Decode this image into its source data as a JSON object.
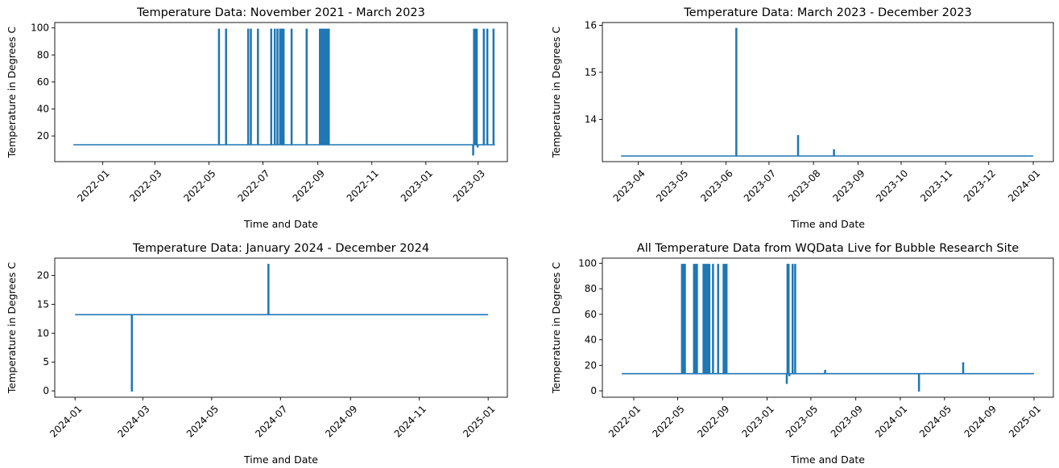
{
  "colors": {
    "series": "#1f77b4",
    "axes": "#000000",
    "background": "#ffffff"
  },
  "chart_data": [
    {
      "type": "line",
      "title": "Temperature Data: November 2021 - March 2023",
      "xlabel": "Time and Date",
      "ylabel": "Temperature in Degrees C",
      "xlim": [
        "2021-11-08",
        "2023-04-03"
      ],
      "ylim": [
        1,
        104
      ],
      "xticks": [
        "2022-01",
        "2022-03",
        "2022-05",
        "2022-07",
        "2022-09",
        "2022-11",
        "2023-01",
        "2023-03"
      ],
      "yticks": [
        20,
        40,
        60,
        80,
        100
      ],
      "grid": false,
      "legend": "none",
      "series": [
        {
          "baseline": 13.5,
          "x_range": [
            "2021-11-29",
            "2023-03-20"
          ],
          "spikes": [
            {
              "x": "2022-05-12",
              "y": 99
            },
            {
              "x": "2022-05-20",
              "y": 99
            },
            {
              "x": "2022-06-14",
              "y": 99
            },
            {
              "x": "2022-06-17",
              "y": 99
            },
            {
              "x": "2022-06-25",
              "y": 99
            },
            {
              "x": "2022-07-10",
              "y": 99
            },
            {
              "x": "2022-07-14",
              "y": 99
            },
            {
              "x": "2022-07-17",
              "y": 99
            },
            {
              "x": "2022-07-20",
              "y": 99
            },
            {
              "x": "2022-07-22",
              "y": 99
            },
            {
              "x": "2022-07-24",
              "y": 99
            },
            {
              "x": "2022-08-02",
              "y": 99
            },
            {
              "x": "2022-08-19",
              "y": 99
            },
            {
              "x": "2022-09-03",
              "y": 99
            },
            {
              "x": "2022-09-04",
              "y": 99
            },
            {
              "x": "2022-09-05",
              "y": 99
            },
            {
              "x": "2022-09-06",
              "y": 99
            },
            {
              "x": "2022-09-07",
              "y": 99
            },
            {
              "x": "2022-09-08",
              "y": 99
            },
            {
              "x": "2022-09-09",
              "y": 99
            },
            {
              "x": "2022-09-10",
              "y": 99
            },
            {
              "x": "2022-09-11",
              "y": 99
            },
            {
              "x": "2022-09-12",
              "y": 99
            },
            {
              "x": "2022-09-13",
              "y": 99
            },
            {
              "x": "2023-02-23",
              "y": 6
            },
            {
              "x": "2023-02-24",
              "y": 99
            },
            {
              "x": "2023-02-25",
              "y": 99
            },
            {
              "x": "2023-02-26",
              "y": 99
            },
            {
              "x": "2023-02-27",
              "y": 99
            },
            {
              "x": "2023-02-28",
              "y": 12
            },
            {
              "x": "2023-03-07",
              "y": 99
            },
            {
              "x": "2023-03-11",
              "y": 99
            },
            {
              "x": "2023-03-18",
              "y": 99
            }
          ]
        }
      ]
    },
    {
      "type": "line",
      "title": "Temperature Data: March 2023 - December 2023",
      "xlabel": "Time and Date",
      "ylabel": "Temperature in Degrees C",
      "xlim": [
        "2023-03-07",
        "2024-01-15"
      ],
      "ylim": [
        13.1,
        16.06
      ],
      "xticks": [
        "2023-04",
        "2023-05",
        "2023-06",
        "2023-07",
        "2023-08",
        "2023-09",
        "2023-10",
        "2023-11",
        "2023-12",
        "2024-01"
      ],
      "yticks": [
        14,
        15,
        16
      ],
      "grid": false,
      "legend": "none",
      "series": [
        {
          "baseline": 13.22,
          "x_range": [
            "2023-03-20",
            "2024-01-01"
          ],
          "spikes": [
            {
              "x": "2023-06-08",
              "y": 15.93
            },
            {
              "x": "2023-07-21",
              "y": 13.65
            },
            {
              "x": "2023-08-15",
              "y": 13.35
            }
          ]
        }
      ]
    },
    {
      "type": "line",
      "title": "Temperature Data: January 2024 - December 2024",
      "xlabel": "Time and Date",
      "ylabel": "Temperature in Degrees C",
      "xlim": [
        "2023-12-14",
        "2025-01-18"
      ],
      "ylim": [
        -1.1,
        23.0
      ],
      "xticks": [
        "2024-01",
        "2024-03",
        "2024-05",
        "2024-07",
        "2024-09",
        "2024-11",
        "2025-01"
      ],
      "yticks": [
        0,
        5,
        10,
        15,
        20
      ],
      "grid": false,
      "legend": "none",
      "series": [
        {
          "baseline": 13.2,
          "x_range": [
            "2024-01-01",
            "2025-01-01"
          ],
          "spikes": [
            {
              "x": "2024-02-20",
              "y": 0
            },
            {
              "x": "2024-06-20",
              "y": 21.9
            }
          ]
        }
      ]
    },
    {
      "type": "line",
      "title": "All Temperature Data from WQData Live for Bubble Research Site",
      "xlabel": "Time and Date",
      "ylabel": "Temperature in Degrees C",
      "xlim": [
        "2021-10-07",
        "2025-02-23"
      ],
      "ylim": [
        -5,
        104
      ],
      "xticks": [
        "2022-01",
        "2022-05",
        "2022-09",
        "2023-01",
        "2023-05",
        "2023-09",
        "2024-01",
        "2024-05",
        "2024-09",
        "2025-01"
      ],
      "yticks": [
        0,
        20,
        40,
        60,
        80,
        100
      ],
      "grid": false,
      "legend": "none",
      "series": [
        {
          "baseline": 13.5,
          "x_range": [
            "2021-11-29",
            "2025-01-01"
          ],
          "spikes": [
            {
              "x": "2022-05-12",
              "y": 99
            },
            {
              "x": "2022-05-16",
              "y": 99
            },
            {
              "x": "2022-05-20",
              "y": 99
            },
            {
              "x": "2022-06-14",
              "y": 99
            },
            {
              "x": "2022-06-18",
              "y": 99
            },
            {
              "x": "2022-06-22",
              "y": 99
            },
            {
              "x": "2022-07-10",
              "y": 99
            },
            {
              "x": "2022-07-14",
              "y": 99
            },
            {
              "x": "2022-07-18",
              "y": 99
            },
            {
              "x": "2022-07-22",
              "y": 99
            },
            {
              "x": "2022-07-26",
              "y": 99
            },
            {
              "x": "2022-08-05",
              "y": 99
            },
            {
              "x": "2022-08-19",
              "y": 99
            },
            {
              "x": "2022-09-03",
              "y": 99
            },
            {
              "x": "2022-09-07",
              "y": 99
            },
            {
              "x": "2022-09-11",
              "y": 99
            },
            {
              "x": "2023-02-23",
              "y": 6
            },
            {
              "x": "2023-02-25",
              "y": 99
            },
            {
              "x": "2023-02-28",
              "y": 99
            },
            {
              "x": "2023-03-02",
              "y": 12
            },
            {
              "x": "2023-03-11",
              "y": 99
            },
            {
              "x": "2023-03-18",
              "y": 99
            },
            {
              "x": "2023-06-08",
              "y": 15.9
            },
            {
              "x": "2024-02-20",
              "y": 0
            },
            {
              "x": "2024-06-20",
              "y": 21.9
            }
          ]
        }
      ]
    }
  ]
}
